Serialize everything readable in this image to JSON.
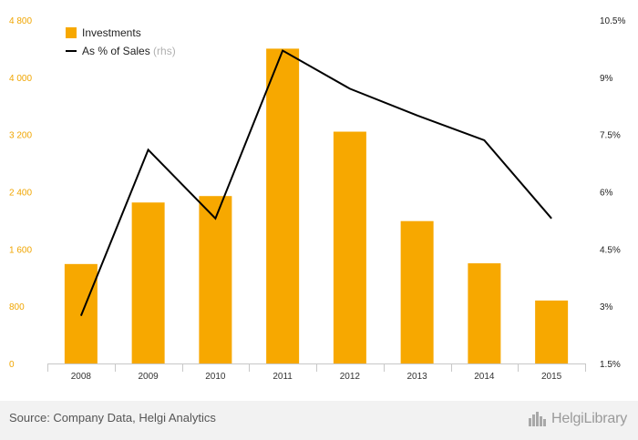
{
  "chart_data": {
    "type": "bar",
    "categories": [
      "2008",
      "2009",
      "2010",
      "2011",
      "2012",
      "2013",
      "2014",
      "2015"
    ],
    "series": [
      {
        "name": "Investments",
        "type": "bar",
        "axis": "left",
        "color": "#f7a800",
        "values": [
          1390,
          2250,
          2340,
          4400,
          3240,
          1990,
          1400,
          880
        ]
      },
      {
        "name": "As % of Sales",
        "name_suffix": "(rhs)",
        "type": "line",
        "axis": "right",
        "color": "#000000",
        "values": [
          2.75,
          7.1,
          5.3,
          9.7,
          8.7,
          8.0,
          7.35,
          5.3
        ]
      }
    ],
    "y_left": {
      "ticks": [
        0,
        800,
        1600,
        2400,
        3200,
        4000,
        4800
      ],
      "tick_labels": [
        "0",
        "800",
        "1 600",
        "2 400",
        "3 200",
        "4 000",
        "4 800"
      ],
      "range": [
        0,
        4800
      ]
    },
    "y_right": {
      "ticks": [
        1.5,
        3,
        4.5,
        6,
        7.5,
        9,
        10.5
      ],
      "tick_labels": [
        "1.5%",
        "3%",
        "4.5%",
        "6%",
        "7.5%",
        "9%",
        "10.5%"
      ],
      "range": [
        1.5,
        10.5
      ]
    },
    "grid": false,
    "legend_position": "top-left"
  },
  "footer": {
    "source": "Source: Company Data, Helgi Analytics",
    "brand": "HelgiLibrary"
  },
  "colors": {
    "bar": "#f7a800",
    "line": "#000000",
    "left_tick": "#f0a500",
    "footer_bg": "#f2f2f2"
  },
  "icons": {
    "brand": "city-skyline-icon"
  }
}
